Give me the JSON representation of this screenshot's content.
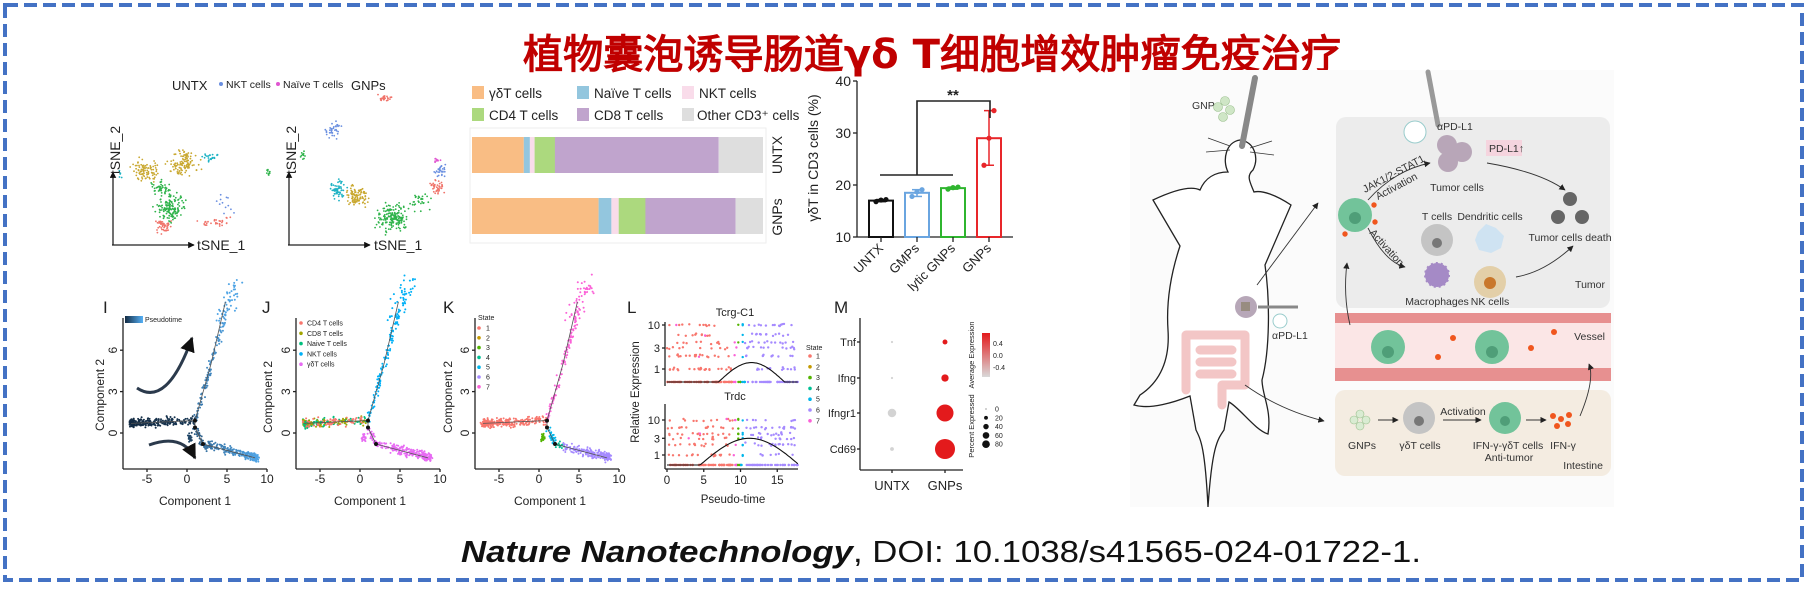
{
  "title": "植物囊泡诱导肠道γδ T细胞增效肿瘤免疫治疗",
  "citation": {
    "journal": "Nature Nanotechnology",
    "doi": ", DOI: 10.1038/s41565-024-01722-1."
  },
  "colors": {
    "border": "#4472c4",
    "title": "#c00000"
  },
  "tsne": {
    "panels": [
      {
        "title": "UNTX"
      },
      {
        "title": "GNPs"
      }
    ],
    "legend": [
      {
        "label": "NKT cells",
        "color": "#6a8fe0"
      },
      {
        "label": "Naïve T cells",
        "color": "#e055d0"
      }
    ],
    "xlabel": "tSNE_1",
    "ylabel": "tSNE_2"
  },
  "chart_data": [
    {
      "id": "composition",
      "type": "bar",
      "orientation": "horizontal",
      "stacked": true,
      "categories": [
        "UNTX",
        "GNPs"
      ],
      "unit": "%",
      "series": [
        {
          "name": "γδT cells",
          "color": "#f9bd84",
          "values": [
            17.8,
            43.5
          ]
        },
        {
          "name": "Naïve T cells",
          "color": "#93c6de",
          "values": [
            2.1,
            4.4
          ]
        },
        {
          "name": "NKT cells",
          "color": "#f9dcea",
          "values": [
            1.6,
            2.5
          ]
        },
        {
          "name": "CD4 T cells",
          "color": "#acd97e",
          "values": [
            7.0,
            9.2
          ]
        },
        {
          "name": "CD8 T cells",
          "color": "#c0a4cd",
          "values": [
            56.3,
            31.0
          ]
        },
        {
          "name": "Other CD3⁺ cells",
          "color": "#dedede",
          "values": [
            15.2,
            9.4
          ]
        }
      ],
      "legend": "top"
    },
    {
      "id": "gdt_fraction",
      "type": "bar",
      "categories": [
        "UNTX",
        "GMPs",
        "lytic GNPs",
        "GNPs"
      ],
      "values": [
        17.0,
        18.5,
        19.4,
        29.0
      ],
      "points": [
        [
          16.8,
          17.1,
          17.2
        ],
        [
          17.8,
          18.7,
          19.1
        ],
        [
          19.2,
          19.5,
          19.6
        ],
        [
          23.8,
          29.0,
          34.3
        ]
      ],
      "colors": [
        "#111111",
        "#6aa5e0",
        "#2fb52f",
        "#e8262a"
      ],
      "ylabel": "γδT in CD3 cells (%)",
      "ylim": [
        10,
        40
      ],
      "yticks": [
        "10",
        "20",
        "30",
        "40"
      ],
      "significance": "**"
    },
    {
      "id": "I",
      "panel_label": "I",
      "type": "scatter",
      "legend": [
        {
          "label": "Pseudotime"
        }
      ],
      "xlabel": "Component 1",
      "ylabel": "Component 2",
      "xticks": [
        "-5",
        "0",
        "5",
        "10"
      ],
      "yticks": [
        "0",
        "3",
        "6"
      ]
    },
    {
      "id": "J",
      "panel_label": "J",
      "type": "scatter",
      "legend": [
        {
          "label": "CD4 T cells",
          "color": "#f8766d"
        },
        {
          "label": "CD8 T cells",
          "color": "#a3a500"
        },
        {
          "label": "Naive T cells",
          "color": "#00bf7d"
        },
        {
          "label": "NKT cells",
          "color": "#00b0f6"
        },
        {
          "label": "γδT cells",
          "color": "#e76bf3"
        }
      ],
      "xlabel": "Component 1",
      "ylabel": "Component 2",
      "xticks": [
        "-5",
        "0",
        "5",
        "10"
      ],
      "yticks": [
        "0",
        "3",
        "6"
      ]
    },
    {
      "id": "K",
      "panel_label": "K",
      "type": "scatter",
      "legend_title": "State",
      "legend": [
        {
          "label": "1",
          "color": "#f8766d"
        },
        {
          "label": "2",
          "color": "#c49a00"
        },
        {
          "label": "3",
          "color": "#53b400"
        },
        {
          "label": "4",
          "color": "#00c094"
        },
        {
          "label": "5",
          "color": "#00b6eb"
        },
        {
          "label": "6",
          "color": "#a58aff"
        },
        {
          "label": "7",
          "color": "#fb61d7"
        }
      ],
      "xlabel": "Component 1",
      "ylabel": "Component 2",
      "xticks": [
        "-5",
        "0",
        "5",
        "10"
      ],
      "yticks": [
        "0",
        "3",
        "6"
      ]
    },
    {
      "id": "L",
      "panel_label": "L",
      "type": "scatter",
      "panels": [
        {
          "title": "Tcrg-C1"
        },
        {
          "title": "Trdc"
        }
      ],
      "xlabel": "Pseudo-time",
      "ylabel": "Relative Expression",
      "xticks": [
        "0",
        "5",
        "10",
        "15"
      ],
      "yticks": [
        "1",
        "3",
        "10"
      ],
      "yscale": "log",
      "legend_title": "State",
      "legend": [
        {
          "label": "1",
          "color": "#f8766d"
        },
        {
          "label": "2",
          "color": "#c49a00"
        },
        {
          "label": "3",
          "color": "#53b400"
        },
        {
          "label": "4",
          "color": "#00c094"
        },
        {
          "label": "5",
          "color": "#00b6eb"
        },
        {
          "label": "6",
          "color": "#a58aff"
        },
        {
          "label": "7",
          "color": "#fb61d7"
        }
      ]
    },
    {
      "id": "M",
      "panel_label": "M",
      "type": "dot",
      "genes": [
        "Tnf",
        "Ifng",
        "Ifngr1",
        "Cd69"
      ],
      "groups": [
        "UNTX",
        "GNPs"
      ],
      "percent_expressed": {
        "UNTX": [
          1,
          1,
          15,
          3
        ],
        "GNPs": [
          5,
          11,
          60,
          83
        ]
      },
      "average_expression": {
        "UNTX": [
          -0.5,
          -0.5,
          -0.5,
          -0.5
        ],
        "GNPs": [
          0.5,
          0.5,
          0.5,
          0.5
        ]
      },
      "color_legend": {
        "title": "Average Expression",
        "ticks": [
          "0.4",
          "0.0",
          "-0.4"
        ],
        "low": "#d3d3d3",
        "high": "#e31a1c"
      },
      "size_legend": {
        "title": "Percent Expressed",
        "ticks": [
          "0",
          "20",
          "40",
          "60",
          "80"
        ]
      }
    }
  ],
  "diagram": {
    "gnps": "GNPs",
    "apdl1": "αPD-L1",
    "tumor_cells": "Tumor cells",
    "pdl1": "PD-L1",
    "pdl1_arrow": "↑",
    "jak": "JAK1/2-STAT1",
    "activation": "Activation",
    "t_cells": "T cells",
    "dendritic_cells": "Dendritic cells",
    "tumor_death": "Tumor cells death",
    "macrophages": "Macrophages",
    "nk_cells": "NK cells",
    "tumor": "Tumor",
    "vessel": "Vessel",
    "gdt_cells": "γδT cells",
    "ifn_gdt": "IFN-γ-γδT cells",
    "anti_tumor": "Anti-tumor",
    "ifng": "IFN-γ",
    "intestine": "Intestine"
  }
}
